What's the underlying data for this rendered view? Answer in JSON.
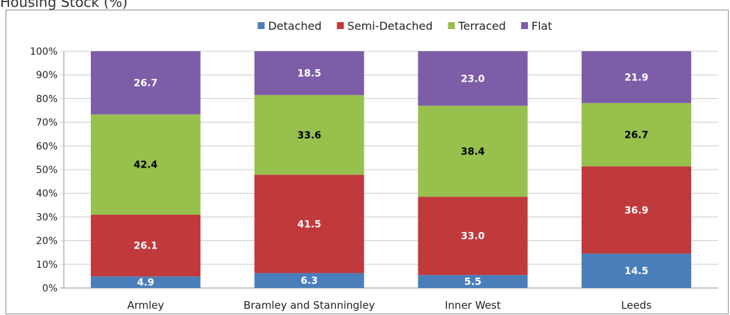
{
  "page_title": "Housing Stock (%)",
  "chart_data": {
    "type": "bar",
    "stacked": true,
    "percent_stacked": true,
    "categories": [
      "Armley",
      "Bramley and Stanningley",
      "Inner West",
      "Leeds"
    ],
    "series": [
      {
        "name": "Detached",
        "color": "#4a7ebb",
        "label_color": "#ffffff",
        "values": [
          4.9,
          6.3,
          5.5,
          14.5
        ]
      },
      {
        "name": "Semi-Detached",
        "color": "#c0393b",
        "label_color": "#ffffff",
        "values": [
          26.1,
          41.5,
          33.0,
          36.9
        ]
      },
      {
        "name": "Terraced",
        "color": "#98c04d",
        "label_color": "#000000",
        "values": [
          42.4,
          33.6,
          38.4,
          26.7
        ]
      },
      {
        "name": "Flat",
        "color": "#7e5da8",
        "label_color": "#ffffff",
        "values": [
          26.7,
          18.5,
          23.0,
          21.9
        ]
      }
    ],
    "data_labels": [
      [
        "4.9",
        "6.3",
        "5.5",
        "14.5"
      ],
      [
        "26.1",
        "41.5",
        "33.0",
        "36.9"
      ],
      [
        "42.4",
        "33.6",
        "38.4",
        "26.7"
      ],
      [
        "26.7",
        "18.5",
        "23.0",
        "21.9"
      ]
    ],
    "ytick_labels": [
      "0%",
      "10%",
      "20%",
      "30%",
      "40%",
      "50%",
      "60%",
      "70%",
      "80%",
      "90%",
      "100%"
    ],
    "ylim": [
      0,
      100
    ],
    "grid": true,
    "legend_position": "top"
  }
}
